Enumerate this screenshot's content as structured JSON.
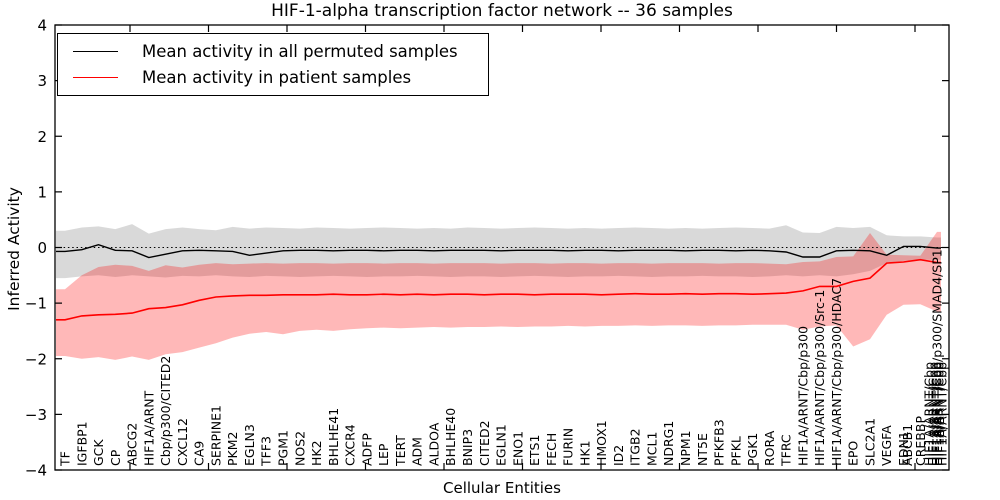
{
  "title": "HIF-1-alpha transcription factor network -- 36 samples",
  "axes": {
    "ylabel": "Inferred Activity",
    "xlabel": "Cellular Entities",
    "ylim": [
      -4,
      4
    ],
    "yticks": [
      {
        "v": 4,
        "label": "4"
      },
      {
        "v": 3,
        "label": "3"
      },
      {
        "v": 2,
        "label": "2"
      },
      {
        "v": 1,
        "label": "1"
      },
      {
        "v": 0,
        "label": "0"
      },
      {
        "v": -1,
        "label": "−1"
      },
      {
        "v": -2,
        "label": "−2"
      },
      {
        "v": -3,
        "label": "−3"
      },
      {
        "v": -4,
        "label": "−4"
      }
    ],
    "grid": false,
    "zero_line_style": "dotted"
  },
  "legend": [
    {
      "label": "Mean activity in all permuted samples",
      "color": "#000000"
    },
    {
      "label": "Mean activity in patient samples",
      "color": "#ff0000"
    }
  ],
  "chart_data": {
    "type": "line",
    "title": "HIF-1-alpha transcription factor network -- 36 samples",
    "xlabel": "Cellular Entities",
    "ylabel": "Inferred Activity",
    "ylim": [
      -4,
      4
    ],
    "legend_position": "upper left",
    "categories": [
      "TF",
      "IGFBP1",
      "GCK",
      "CP",
      "ABCG2",
      "HIF1A/ARNT",
      "Cbp/p300/CITED2",
      "CXCL12",
      "CA9",
      "SERPINE1",
      "PKM2",
      "EGLN3",
      "TFF3",
      "PGM1",
      "NOS2",
      "HK2",
      "BHLHE41",
      "CXCR4",
      "ADFP",
      "LEP",
      "TERT",
      "ADM",
      "ALDOA",
      "BHLHE40",
      "BNIP3",
      "CITED2",
      "EGLN1",
      "ENO1",
      "ETS1",
      "FECH",
      "FURIN",
      "HK1",
      "HMOX1",
      "ID2",
      "ITGB2",
      "MCL1",
      "NDRG1",
      "NPM1",
      "NT5E",
      "PFKFB3",
      "PFKL",
      "PGK1",
      "RORA",
      "TFRC",
      "HIF1A/ARNT/Cbp/p300",
      "HIF1A/ARNT/Cbp/p300/Src-1",
      "HIF1A/ARNT/Cbp/p300/HDAC7",
      "EPO",
      "SLC2A1",
      "VEGFA",
      "EDN1",
      "CREBBP",
      "HIF1A/ARNT/Cbp/p300/SMAD4/SP1"
    ],
    "overlapping_labels": [
      {
        "index": 50,
        "label": "ABCB1",
        "dx": 4
      },
      {
        "index": 52,
        "label": "HIF1A/ARNT/Cbp",
        "dx": -8
      },
      {
        "index": 52,
        "label": "HIF1A/ARNT/Cbp",
        "dx": -4
      },
      {
        "index": 52,
        "label": "HIF1A/ARNT/Cbp",
        "dx": -1
      },
      {
        "index": 52,
        "label": "HIF1A/ARNT/Cbp",
        "dx": 2
      },
      {
        "index": 52,
        "label": "HIF1A/ARNT/Cbp",
        "dx": 5
      }
    ],
    "series": [
      {
        "name": "Mean activity in all permuted samples",
        "color": "#000000",
        "values": [
          -0.07,
          -0.04,
          0.05,
          -0.05,
          -0.06,
          -0.18,
          -0.12,
          -0.06,
          -0.05,
          -0.06,
          -0.07,
          -0.14,
          -0.1,
          -0.06,
          -0.05,
          -0.05,
          -0.06,
          -0.05,
          -0.05,
          -0.06,
          -0.05,
          -0.05,
          -0.06,
          -0.05,
          -0.05,
          -0.05,
          -0.06,
          -0.05,
          -0.05,
          -0.05,
          -0.06,
          -0.05,
          -0.05,
          -0.06,
          -0.05,
          -0.05,
          -0.05,
          -0.06,
          -0.05,
          -0.05,
          -0.06,
          -0.05,
          -0.06,
          -0.08,
          -0.17,
          -0.17,
          -0.06,
          -0.05,
          -0.06,
          -0.14,
          0.02,
          0.02,
          -0.01
        ]
      },
      {
        "name": "Mean activity in patient samples",
        "color": "#ff0000",
        "values": [
          -1.3,
          -1.23,
          -1.21,
          -1.2,
          -1.18,
          -1.1,
          -1.08,
          -1.03,
          -0.95,
          -0.89,
          -0.87,
          -0.86,
          -0.86,
          -0.85,
          -0.85,
          -0.85,
          -0.84,
          -0.85,
          -0.85,
          -0.84,
          -0.85,
          -0.84,
          -0.85,
          -0.84,
          -0.84,
          -0.85,
          -0.84,
          -0.84,
          -0.85,
          -0.84,
          -0.84,
          -0.84,
          -0.85,
          -0.84,
          -0.83,
          -0.84,
          -0.84,
          -0.83,
          -0.84,
          -0.83,
          -0.83,
          -0.84,
          -0.83,
          -0.82,
          -0.78,
          -0.7,
          -0.7,
          -0.61,
          -0.55,
          -0.28,
          -0.26,
          -0.22,
          -0.27
        ]
      }
    ],
    "bands": [
      {
        "name": "permuted-samples-band",
        "color": "#000000",
        "alpha": 0.15,
        "upper": [
          0.3,
          0.36,
          0.38,
          0.33,
          0.42,
          0.25,
          0.33,
          0.36,
          0.33,
          0.31,
          0.37,
          0.34,
          0.36,
          0.35,
          0.34,
          0.36,
          0.35,
          0.34,
          0.35,
          0.36,
          0.35,
          0.34,
          0.35,
          0.34,
          0.36,
          0.35,
          0.34,
          0.35,
          0.36,
          0.35,
          0.34,
          0.35,
          0.34,
          0.35,
          0.36,
          0.35,
          0.34,
          0.35,
          0.34,
          0.35,
          0.36,
          0.35,
          0.34,
          0.4,
          0.27,
          0.26,
          0.37,
          0.35,
          0.37,
          0.22,
          0.2,
          0.2,
          0.18
        ],
        "lower": [
          -0.55,
          -0.52,
          -0.5,
          -0.53,
          -0.5,
          -0.52,
          -0.54,
          -0.51,
          -0.52,
          -0.5,
          -0.52,
          -0.53,
          -0.51,
          -0.52,
          -0.53,
          -0.52,
          -0.51,
          -0.52,
          -0.53,
          -0.52,
          -0.52,
          -0.51,
          -0.52,
          -0.53,
          -0.52,
          -0.52,
          -0.53,
          -0.52,
          -0.51,
          -0.52,
          -0.53,
          -0.52,
          -0.52,
          -0.51,
          -0.52,
          -0.53,
          -0.52,
          -0.52,
          -0.51,
          -0.52,
          -0.52,
          -0.53,
          -0.52,
          -0.5,
          -0.52,
          -0.5,
          -0.52,
          -0.48,
          -0.42,
          -0.28,
          -0.24,
          -0.22,
          -0.22
        ]
      },
      {
        "name": "patient-samples-band",
        "color": "#ff0000",
        "alpha": 0.28,
        "upper": [
          -0.75,
          -0.5,
          -0.35,
          -0.31,
          -0.33,
          -0.42,
          -0.32,
          -0.36,
          -0.31,
          -0.28,
          -0.3,
          -0.29,
          -0.28,
          -0.29,
          -0.28,
          -0.28,
          -0.29,
          -0.28,
          -0.28,
          -0.29,
          -0.28,
          -0.28,
          -0.29,
          -0.28,
          -0.28,
          -0.28,
          -0.29,
          -0.28,
          -0.28,
          -0.29,
          -0.28,
          -0.28,
          -0.29,
          -0.28,
          -0.28,
          -0.29,
          -0.28,
          -0.28,
          -0.28,
          -0.29,
          -0.28,
          -0.28,
          -0.29,
          -0.3,
          -0.26,
          -0.25,
          -0.17,
          -0.16,
          0.26,
          -0.13,
          -0.14,
          -0.15,
          0.28
        ],
        "lower": [
          -1.95,
          -2.0,
          -1.97,
          -2.02,
          -1.96,
          -2.02,
          -1.92,
          -1.88,
          -1.8,
          -1.72,
          -1.62,
          -1.55,
          -1.52,
          -1.56,
          -1.5,
          -1.48,
          -1.5,
          -1.47,
          -1.45,
          -1.44,
          -1.45,
          -1.44,
          -1.43,
          -1.44,
          -1.43,
          -1.43,
          -1.42,
          -1.43,
          -1.42,
          -1.42,
          -1.41,
          -1.42,
          -1.41,
          -1.41,
          -1.4,
          -1.41,
          -1.4,
          -1.4,
          -1.41,
          -1.4,
          -1.4,
          -1.39,
          -1.39,
          -1.39,
          -1.48,
          -1.42,
          -1.4,
          -1.78,
          -1.65,
          -1.21,
          -1.03,
          -1.02,
          -1.15
        ]
      }
    ],
    "zero_line": 0
  }
}
